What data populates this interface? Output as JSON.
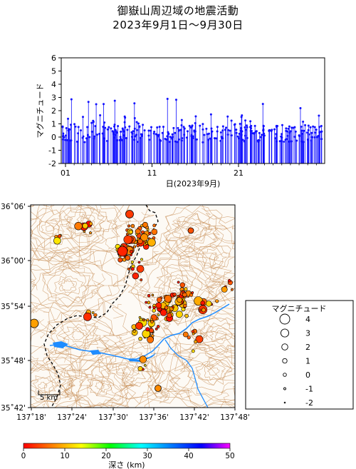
{
  "title": "御嶽山周辺域の地震活動",
  "subtitle": "2023年9月1日～9月30日",
  "timeseries": {
    "ylabel": "マグニチュード",
    "xlabel": "日(2023年9月)",
    "y_ticks": [
      "-2",
      "-1",
      "0",
      "1",
      "2",
      "3",
      "4",
      "5",
      "6"
    ],
    "x_ticks": [
      "01",
      "11",
      "21"
    ],
    "color": "#1010ff"
  },
  "map": {
    "lat_ticks": [
      "36˚06'",
      "36˚00'",
      "35˚54'",
      "35˚48'",
      "35˚42'"
    ],
    "lon_ticks": [
      "137˚18'",
      "137˚24'",
      "137˚30'",
      "137˚36'",
      "137˚42'",
      "137˚48'"
    ],
    "scale_label": "5 km",
    "contour_color": "#c8905a",
    "river_color": "#1e8cff"
  },
  "legend": {
    "title": "マグニチュード",
    "entries": [
      "4",
      "3",
      "2",
      "1",
      "0",
      "-1",
      "-2"
    ]
  },
  "colorbar": {
    "label": "深さ (km)",
    "ticks": [
      "0",
      "10",
      "20",
      "30",
      "40",
      "50"
    ]
  }
}
